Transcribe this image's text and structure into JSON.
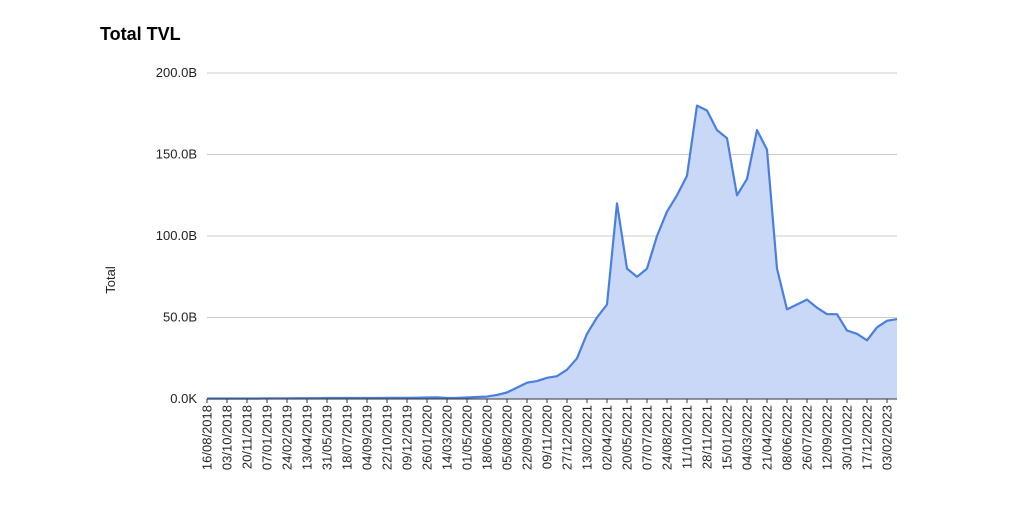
{
  "chart_data": {
    "type": "area",
    "title": "Total TVL",
    "y_label": "Total",
    "categories": [
      "16/08/2018",
      null,
      "03/10/2018",
      null,
      "20/11/2018",
      null,
      "07/01/2019",
      null,
      "24/02/2019",
      null,
      "13/04/2019",
      null,
      "31/05/2019",
      null,
      "18/07/2019",
      null,
      "04/09/2019",
      null,
      "22/10/2019",
      null,
      "09/12/2019",
      null,
      "26/01/2020",
      null,
      "14/03/2020",
      null,
      "01/05/2020",
      null,
      "18/06/2020",
      null,
      "05/08/2020",
      null,
      "22/09/2020",
      null,
      "09/11/2020",
      null,
      "27/12/2020",
      null,
      "13/02/2021",
      null,
      "02/04/2021",
      null,
      "20/05/2021",
      null,
      "07/07/2021",
      null,
      "24/08/2021",
      null,
      "11/10/2021",
      null,
      "28/11/2021",
      null,
      "15/01/2022",
      null,
      "04/03/2022",
      null,
      "21/04/2022",
      null,
      "08/06/2022",
      null,
      "26/07/2022",
      null,
      "12/09/2022",
      null,
      "30/10/2022",
      null,
      "17/12/2022",
      null,
      "03/02/2023",
      null
    ],
    "values": [
      0.3,
      0.3,
      0.3,
      0.3,
      0.3,
      0.3,
      0.4,
      0.4,
      0.4,
      0.5,
      0.5,
      0.5,
      0.6,
      0.6,
      0.6,
      0.6,
      0.6,
      0.6,
      0.7,
      0.7,
      0.7,
      0.8,
      0.9,
      1.0,
      0.6,
      0.7,
      0.9,
      1.2,
      1.5,
      2.5,
      4,
      7,
      10,
      11,
      13,
      14,
      18,
      25,
      40,
      50,
      58,
      120,
      80,
      75,
      80,
      100,
      115,
      125,
      137,
      180,
      177,
      165,
      160,
      125,
      135,
      165,
      153,
      80,
      55,
      58,
      61,
      56,
      52,
      52,
      42,
      40,
      36,
      44,
      48,
      49
    ],
    "color": "#4a7fe0",
    "fill_color": "#c9d8f6",
    "ylim": [
      0,
      200
    ],
    "yticks": [
      {
        "value": 0,
        "label": "0.0K"
      },
      {
        "value": 50,
        "label": "50.0B"
      },
      {
        "value": 100,
        "label": "100.0B"
      },
      {
        "value": 150,
        "label": "150.0B"
      },
      {
        "value": 200,
        "label": "200.0B"
      }
    ],
    "grid": true
  }
}
